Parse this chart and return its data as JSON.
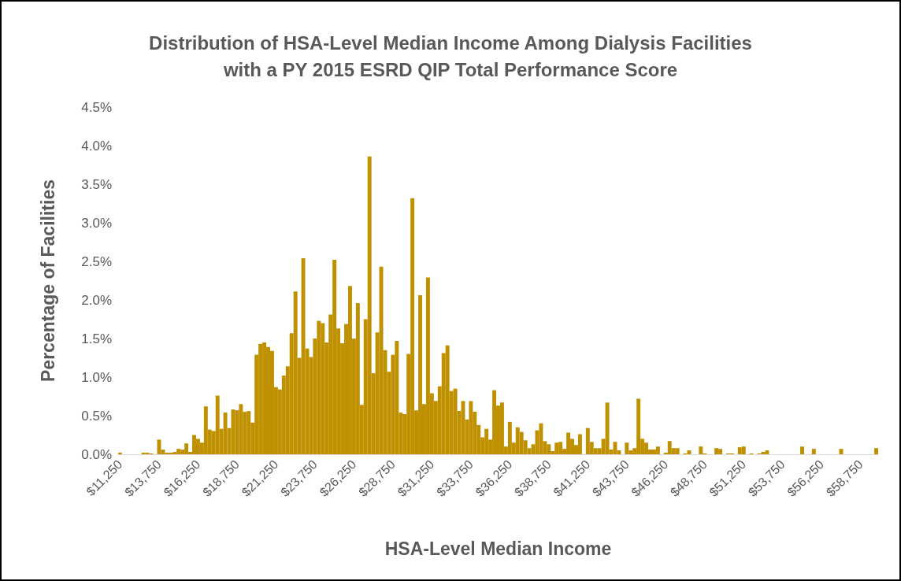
{
  "chart_data": {
    "type": "bar",
    "title": "Distribution of HSA-Level Median Income Among Dialysis Facilities\nwith a PY 2015 ESRD QIP Total Performance Score",
    "xlabel": "HSA-Level Median Income",
    "ylabel": "Percentage of Facilities",
    "categories": [
      "$11,250",
      null,
      null,
      null,
      null,
      null,
      null,
      null,
      null,
      null,
      "$13,750",
      null,
      null,
      null,
      null,
      null,
      null,
      null,
      null,
      null,
      "$16,250",
      null,
      null,
      null,
      null,
      null,
      null,
      null,
      null,
      null,
      "$18,750",
      null,
      null,
      null,
      null,
      null,
      null,
      null,
      null,
      null,
      "$21,250",
      null,
      null,
      null,
      null,
      null,
      null,
      null,
      null,
      null,
      "$23,750",
      null,
      null,
      null,
      null,
      null,
      null,
      null,
      null,
      null,
      "$26,250",
      null,
      null,
      null,
      null,
      null,
      null,
      null,
      null,
      null,
      "$28,750",
      null,
      null,
      null,
      null,
      null,
      null,
      null,
      null,
      null,
      "$31,250",
      null,
      null,
      null,
      null,
      null,
      null,
      null,
      null,
      null,
      "$33,750",
      null,
      null,
      null,
      null,
      null,
      null,
      null,
      null,
      null,
      "$36,250",
      null,
      null,
      null,
      null,
      null,
      null,
      null,
      null,
      null,
      "$38,750",
      null,
      null,
      null,
      null,
      null,
      null,
      null,
      null,
      null,
      "$41,250",
      null,
      null,
      null,
      null,
      null,
      null,
      null,
      null,
      null,
      "$43,750",
      null,
      null,
      null,
      null,
      null,
      null,
      null,
      null,
      null,
      "$46,250",
      null,
      null,
      null,
      null,
      null,
      null,
      null,
      null,
      null,
      "$48,750",
      null,
      null,
      null,
      null,
      null,
      null,
      null,
      null,
      null,
      "$51,250",
      null,
      null,
      null,
      null,
      null,
      null,
      null,
      null,
      null,
      "$53,750",
      null,
      null,
      null,
      null,
      null,
      null,
      null,
      null,
      null,
      "$56,250",
      null,
      null,
      null,
      null,
      null,
      null,
      null,
      null,
      null,
      "$58,750",
      null,
      null,
      null,
      null
    ],
    "values": [
      0.02,
      0,
      0,
      0,
      0,
      0,
      0.02,
      0.02,
      0.01,
      0,
      0.19,
      0.06,
      0.02,
      0.02,
      0.03,
      0.07,
      0.06,
      0.14,
      0.03,
      0.25,
      0.2,
      0.15,
      0.62,
      0.32,
      0.3,
      0.76,
      0.33,
      0.54,
      0.34,
      0.58,
      0.57,
      0.65,
      0.55,
      0.56,
      0.41,
      1.29,
      1.43,
      1.45,
      1.39,
      1.34,
      0.87,
      0.84,
      1.02,
      1.14,
      1.57,
      2.11,
      1.25,
      2.54,
      1.37,
      1.26,
      1.5,
      1.73,
      1.7,
      1.45,
      1.81,
      2.52,
      1.63,
      1.44,
      1.69,
      2.18,
      1.5,
      1.96,
      0.64,
      1.75,
      3.86,
      1.05,
      1.58,
      2.43,
      1.35,
      1.07,
      1.29,
      1.47,
      0.54,
      0.52,
      1.3,
      3.32,
      0.57,
      2.06,
      0.65,
      2.29,
      0.79,
      0.69,
      0.88,
      1.31,
      1.41,
      0.82,
      0.85,
      0.56,
      0.69,
      0.45,
      0.69,
      0.55,
      0.38,
      0.22,
      0.33,
      0.19,
      0.83,
      0.63,
      0.67,
      0.1,
      0.42,
      0.15,
      0.35,
      0.29,
      0.18,
      0.08,
      0.13,
      0.31,
      0.4,
      0.17,
      0.13,
      0.04,
      0.15,
      0.16,
      0.07,
      0.28,
      0.2,
      0.12,
      0.26,
      0,
      0.34,
      0.16,
      0.08,
      0.08,
      0.2,
      0.67,
      0.06,
      0.16,
      0.05,
      0,
      0.15,
      0.05,
      0.08,
      0.72,
      0.2,
      0.15,
      0.06,
      0.06,
      0.1,
      0,
      0.02,
      0.17,
      0.08,
      0.08,
      0,
      0.01,
      0.05,
      0,
      0,
      0.1,
      0.01,
      0,
      0,
      0.08,
      0.07,
      0,
      0.01,
      0.01,
      0,
      0.09,
      0.1,
      0,
      0.01,
      0,
      0.01,
      0.03,
      0.05,
      0,
      0,
      0,
      0,
      0,
      0,
      0,
      0,
      0.1,
      0,
      0,
      0.07,
      0,
      0,
      0,
      0,
      0,
      0,
      0.07,
      0,
      0,
      0,
      0,
      0,
      0,
      0,
      0,
      0.08
    ],
    "color": "#bf9000",
    "ylim": [
      0,
      4.5
    ],
    "yticks": [
      {
        "value": 0,
        "label": "0.0%"
      },
      {
        "value": 0.5,
        "label": "0.5%"
      },
      {
        "value": 1,
        "label": "1.0%"
      },
      {
        "value": 1.5,
        "label": "1.5%"
      },
      {
        "value": 2,
        "label": "2.0%"
      },
      {
        "value": 2.5,
        "label": "2.5%"
      },
      {
        "value": 3,
        "label": "3.0%"
      },
      {
        "value": 3.5,
        "label": "3.5%"
      },
      {
        "value": 4,
        "label": "4.0%"
      },
      {
        "value": 4.5,
        "label": "4.5%"
      }
    ],
    "grid": false
  }
}
